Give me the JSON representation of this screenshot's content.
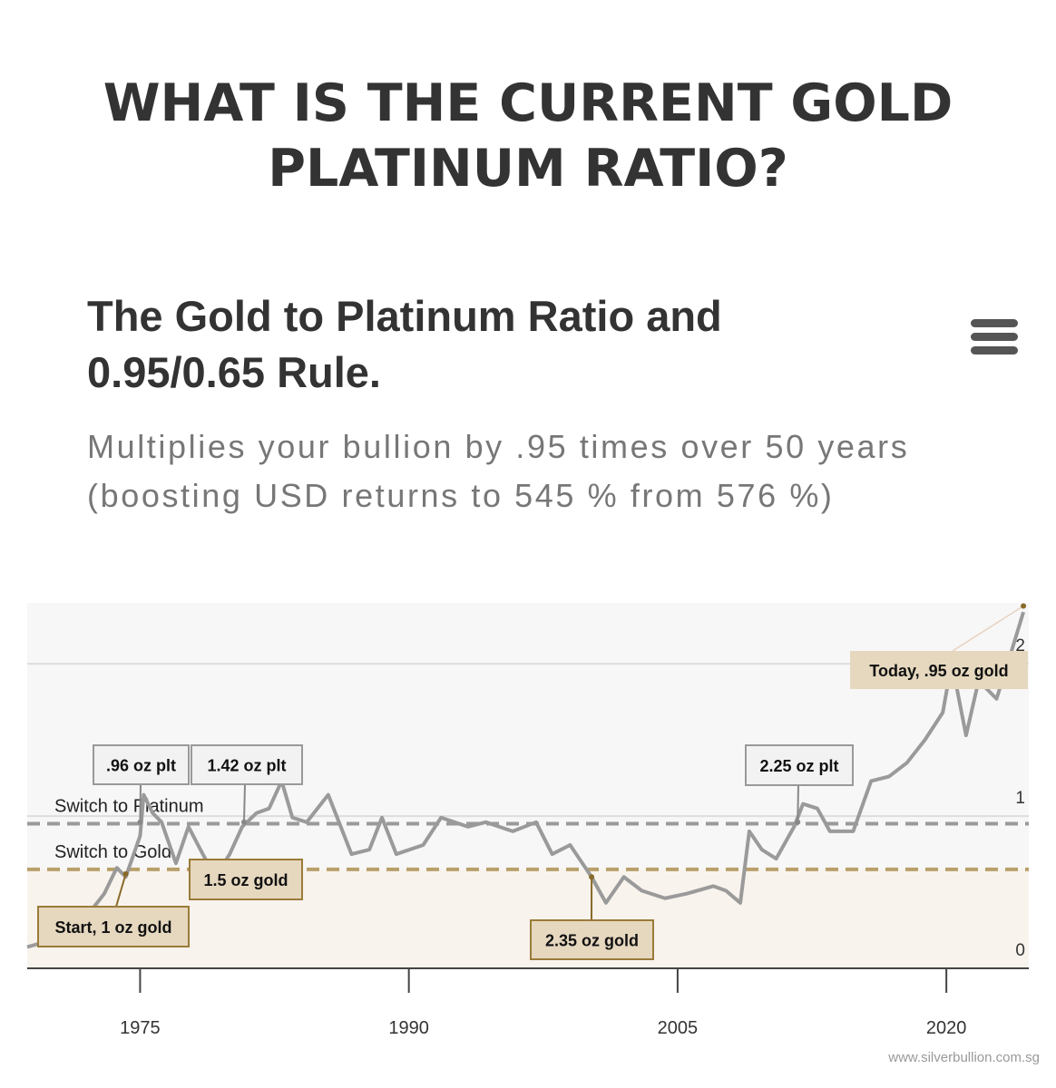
{
  "header": {
    "title": "WHAT IS THE CURRENT GOLD PLATINUM RATIO?"
  },
  "chart_data": {
    "type": "line",
    "title": "The Gold to Platinum Ratio and 0.95/0.65 Rule.",
    "subtitle": "Multiplies your bullion by .95 times over 50 years (boosting USD returns to 545 % from 576 %)",
    "x": [
      1968.7,
      1970.2,
      1971.2,
      1972.2,
      1973.0,
      1973.7,
      1974.2,
      1975.0,
      1975.2,
      1975.7,
      1976.2,
      1977.0,
      1977.7,
      1978.5,
      1979.2,
      1980.0,
      1980.7,
      1981.5,
      1982.2,
      1982.9,
      1983.5,
      1984.3,
      1985.5,
      1986.8,
      1987.8,
      1988.5,
      1989.3,
      1990.8,
      1991.8,
      1993.3,
      1994.3,
      1995.8,
      1997.1,
      1998.0,
      1999.0,
      2000.2,
      2001.0,
      2002.0,
      2003.0,
      2004.3,
      2005.5,
      2007.0,
      2007.7,
      2008.5,
      2009.0,
      2009.7,
      2010.5,
      2011.5,
      2012.0,
      2012.8,
      2013.5,
      2014.8,
      2015.8,
      2016.8,
      2017.8,
      2018.8,
      2019.8,
      2020.3,
      2021.1,
      2021.8,
      2022.8,
      2023.6,
      2024.3
    ],
    "series": [
      {
        "name": "Gold to Platinum Ratio",
        "color": "#9a9a9a",
        "values": [
          0.14,
          0.19,
          0.34,
          0.37,
          0.49,
          0.66,
          0.6,
          0.87,
          1.14,
          1.02,
          0.96,
          0.69,
          0.93,
          0.75,
          0.6,
          0.75,
          0.93,
          1.02,
          1.05,
          1.23,
          0.99,
          0.96,
          1.14,
          0.75,
          0.78,
          0.99,
          0.75,
          0.81,
          0.99,
          0.93,
          0.96,
          0.9,
          0.96,
          0.75,
          0.81,
          0.6,
          0.43,
          0.6,
          0.51,
          0.46,
          0.49,
          0.54,
          0.51,
          0.43,
          0.9,
          0.78,
          0.72,
          0.93,
          1.08,
          1.05,
          0.9,
          0.9,
          1.23,
          1.26,
          1.35,
          1.5,
          1.68,
          2.01,
          1.53,
          1.89,
          1.77,
          2.07,
          2.34
        ]
      }
    ],
    "xlim": [
      1968.7,
      2024.6
    ],
    "xticks": [
      1975,
      1990,
      2005,
      2020
    ],
    "ylim": [
      0,
      2.4
    ],
    "yticks": [
      0,
      1,
      2
    ],
    "grid": true,
    "reference_lines": [
      {
        "label": "Switch to Platinum",
        "value": 0.95,
        "color": "#9a9a9a"
      },
      {
        "label": "Switch to Gold",
        "value": 0.65,
        "color": "#b9a06a"
      }
    ],
    "annotations": [
      {
        "text": "Start, 1 oz gold",
        "x": 1974.2,
        "y": 0.62,
        "color": "#e6d8bf"
      },
      {
        "text": ".96 oz plt",
        "x": 1975.0,
        "y": 0.96,
        "color": "#f2f2f2"
      },
      {
        "text": "1.42 oz plt",
        "x": 1980.8,
        "y": 0.96,
        "color": "#f2f2f2"
      },
      {
        "text": "1.5 oz gold",
        "x": 1979.1,
        "y": 0.63,
        "color": "#e6d8bf"
      },
      {
        "text": "2.35 oz gold",
        "x": 2000.2,
        "y": 0.6,
        "color": "#e6d8bf"
      },
      {
        "text": "2.25 oz plt",
        "x": 2011.7,
        "y": 0.96,
        "color": "#f2f2f2"
      },
      {
        "text": "Today, .95 oz gold",
        "x": 2024.3,
        "y": 2.38,
        "color": "#e6d8bf"
      }
    ],
    "credit": "www.silverbullion.com.sg"
  }
}
